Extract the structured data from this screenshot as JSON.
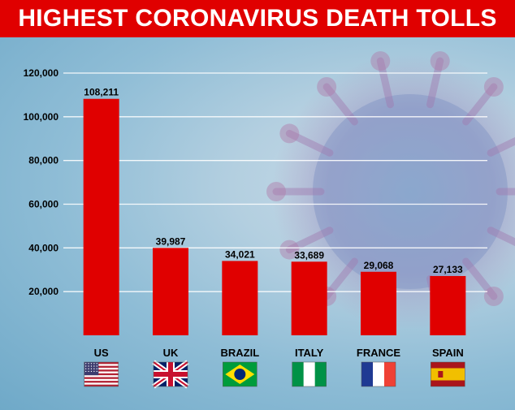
{
  "header": {
    "title": "HIGHEST CORONAVIRUS DEATH TOLLS"
  },
  "colors": {
    "banner": "#e00000",
    "bar": "#e00000",
    "background": "#9fc6dc",
    "gridline": "#ffffff"
  },
  "chart_data": {
    "type": "bar",
    "title": "HIGHEST CORONAVIRUS DEATH TOLLS",
    "categories": [
      "US",
      "UK",
      "BRAZIL",
      "ITALY",
      "FRANCE",
      "SPAIN"
    ],
    "values": [
      108211,
      39987,
      34021,
      33689,
      29068,
      27133
    ],
    "data_labels": [
      "108,211",
      "39,987",
      "34,021",
      "33,689",
      "29,068",
      "27,133"
    ],
    "category_icons": [
      "us-flag-icon",
      "uk-flag-icon",
      "brazil-flag-icon",
      "italy-flag-icon",
      "france-flag-icon",
      "spain-flag-icon"
    ],
    "yticks": [
      20000,
      40000,
      60000,
      80000,
      100000,
      120000
    ],
    "ytick_labels": [
      "20,000",
      "40,000",
      "60,000",
      "80,000",
      "100,000",
      "120,000"
    ],
    "ylim": [
      0,
      120000
    ],
    "xlabel": "",
    "ylabel": "",
    "grid": true,
    "legend": "none"
  }
}
